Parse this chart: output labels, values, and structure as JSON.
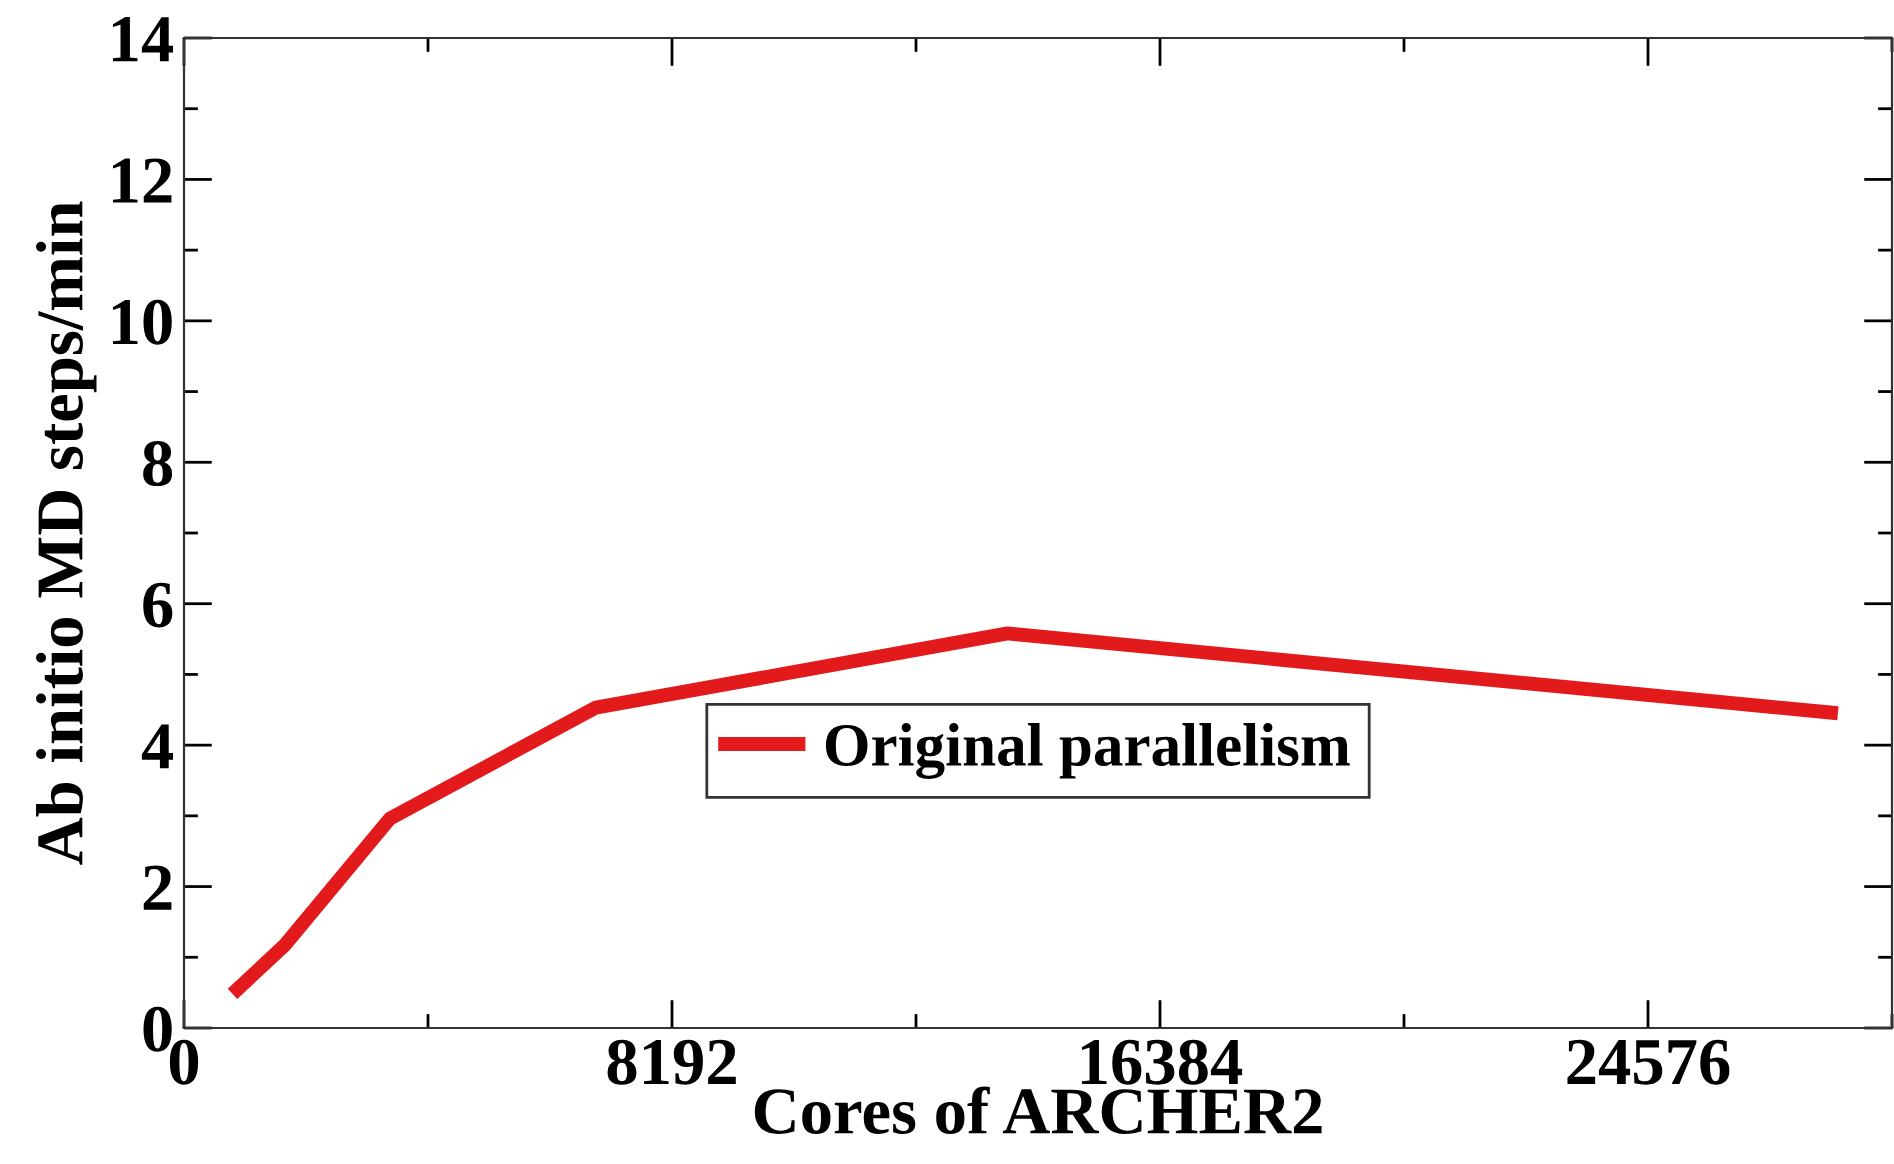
{
  "chart_data": {
    "type": "line",
    "xlabel": "Cores of ARCHER2",
    "ylabel": "Ab initio MD steps/min",
    "xlim": [
      0,
      28672
    ],
    "xticks": [
      0,
      8192,
      16384,
      24576
    ],
    "ylim": [
      0,
      14
    ],
    "yticks": [
      0,
      2,
      4,
      6,
      8,
      10,
      12,
      14
    ],
    "legend": "center",
    "grid": false,
    "marker": "none",
    "line_style": "solid",
    "series": [
      {
        "name": "Original parallelism",
        "color": "#e31a1c",
        "x": [
          900,
          1700,
          3456,
          6912,
          13824,
          27648
        ],
        "values": [
          0.55,
          1.18,
          2.96,
          4.53,
          5.58,
          4.46
        ]
      }
    ]
  }
}
